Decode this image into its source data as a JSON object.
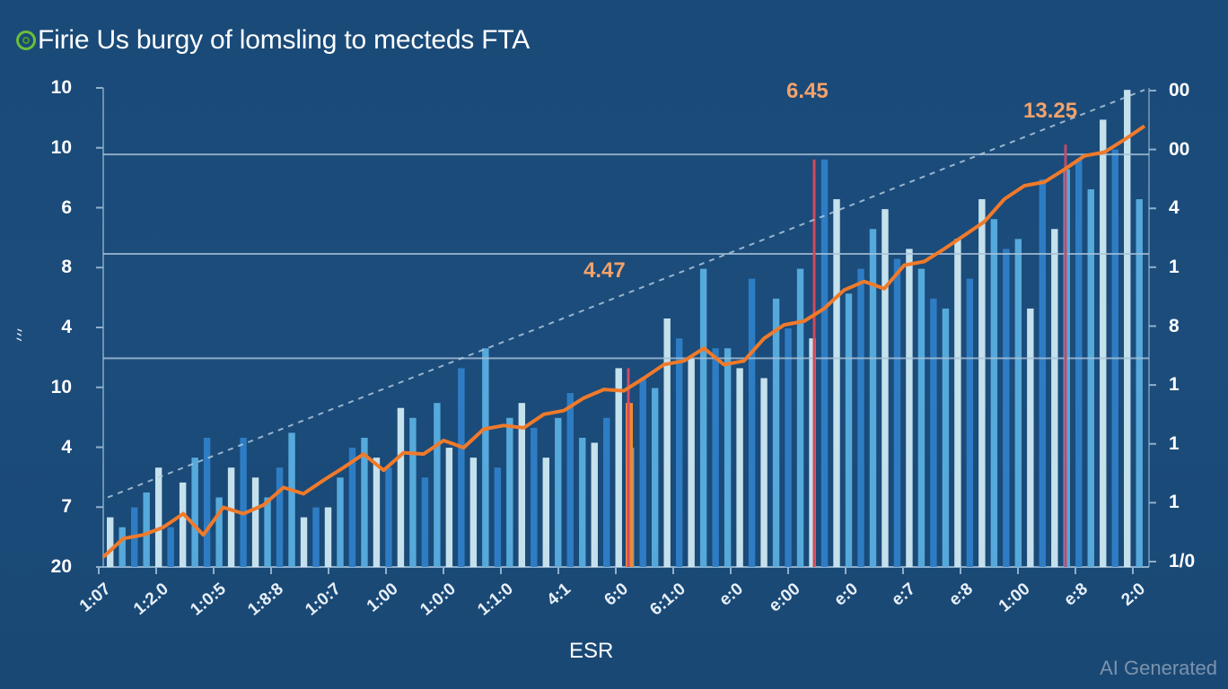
{
  "chart_data": {
    "type": "bar",
    "title": "Firie Us burgy of lomsling to mecteds FTA",
    "xlabel": "ESR",
    "ylabel": "",
    "ylabel_left_glyph": "ﾐ",
    "y_left_ticks": [
      "10",
      "10",
      "6",
      "8",
      "4",
      "10",
      "4",
      "7",
      "20"
    ],
    "y_right_ticks": [
      "00",
      "00",
      "4",
      "1",
      "8",
      "1",
      "1",
      "1",
      "1/0"
    ],
    "x_ticks": [
      "1:07",
      "1:2.0",
      "1:0:5",
      "1:8:8",
      "1:0:7",
      "1:00",
      "1:0:0",
      "1:1:0",
      "4:1",
      "6:0",
      "6:1:0",
      "e:0",
      "e:00",
      "e:0",
      "e:7",
      "e:8",
      "1:00",
      "e:8",
      "2:0"
    ],
    "ylim": [
      0,
      100
    ],
    "gridlines": [
      83,
      63,
      42
    ],
    "series": [
      {
        "name": "bars",
        "type": "bar",
        "values": [
          10,
          8,
          12,
          15,
          20,
          8,
          17,
          22,
          26,
          14,
          20,
          26,
          18,
          14,
          20,
          27,
          10,
          12,
          12,
          18,
          24,
          26,
          22,
          20,
          32,
          30,
          18,
          33,
          24,
          40,
          22,
          44,
          20,
          30,
          33,
          28,
          22,
          30,
          35,
          26,
          25,
          30,
          40,
          24,
          38,
          36,
          50,
          46,
          42,
          60,
          44,
          44,
          40,
          58,
          38,
          54,
          48,
          60,
          46,
          82,
          74,
          55,
          60,
          68,
          72,
          62,
          64,
          60,
          54,
          52,
          66,
          58,
          74,
          70,
          64,
          66,
          52,
          78,
          68,
          80,
          82,
          76,
          90,
          84,
          96,
          74
        ]
      },
      {
        "name": "trend-line",
        "type": "line",
        "values": [
          2,
          5,
          7,
          8,
          10,
          7,
          12,
          10,
          13,
          16,
          14,
          18,
          20,
          22,
          20,
          23,
          22,
          26,
          24,
          27,
          29,
          28,
          30,
          32,
          34,
          35,
          36,
          38,
          40,
          42,
          44,
          40,
          42,
          46,
          48,
          50,
          52,
          55,
          58,
          56,
          60,
          62,
          64,
          66,
          70,
          74,
          76,
          78,
          80,
          82,
          84,
          86,
          88
        ]
      },
      {
        "name": "dashed-projection",
        "type": "line",
        "values": [
          14,
          96
        ]
      }
    ],
    "annotations": [
      {
        "label": "4.47",
        "marker_color": "#d04a6a"
      },
      {
        "label": "6.45",
        "marker_color": "#d04a5a"
      },
      {
        "label": "13.25",
        "marker_color": "#c04a6a"
      }
    ],
    "highlight_bar_color": "#f08a30",
    "colors": {
      "background": "#1b4b79",
      "bar_light": "#cfe9f2",
      "bar_mid": "#5aaee0",
      "bar_dark": "#2f7fc8",
      "line": "#f07a2a",
      "grid": "#8fb0cc"
    }
  },
  "watermark": "AI Generated"
}
